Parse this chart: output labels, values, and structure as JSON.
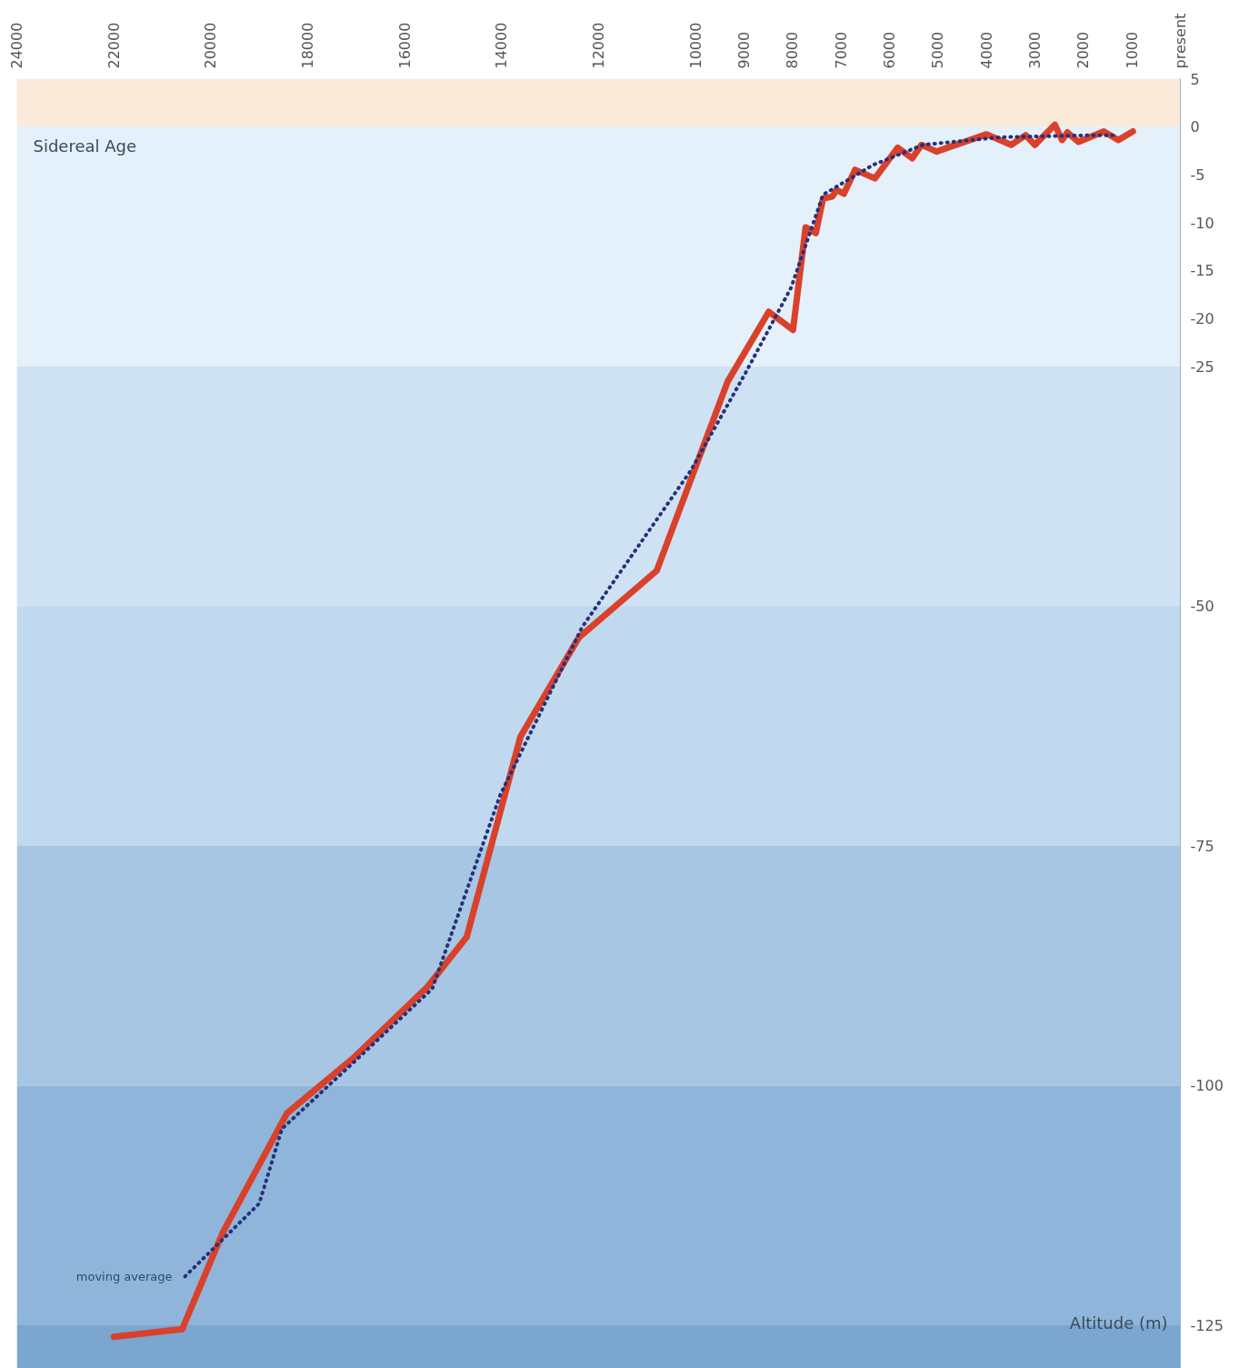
{
  "chart_data": {
    "type": "line",
    "xlabel": "Sidereal Age",
    "ylabel": "Altitude (m)",
    "xlim": [
      24000,
      0
    ],
    "ylim": [
      -129.5,
      5
    ],
    "xticks": [
      24000,
      22000,
      20000,
      18000,
      16000,
      14000,
      12000,
      10000,
      9000,
      8000,
      7000,
      6000,
      5000,
      4000,
      3000,
      2000,
      1000,
      {
        "value": 0,
        "label": "present"
      }
    ],
    "yticks": [
      5,
      0,
      -5,
      -10,
      -15,
      -20,
      -25,
      -50,
      -75,
      -100,
      -125
    ],
    "grid": false,
    "legend": false,
    "bands": [
      {
        "axis": "y",
        "from": 0,
        "to": 5,
        "color": "#fbe9da"
      },
      {
        "axis": "y",
        "from": -25,
        "to": 0,
        "color": "#e4f0fa"
      },
      {
        "axis": "y",
        "from": -50,
        "to": -25,
        "color": "#cfe2f3"
      },
      {
        "axis": "y",
        "from": -75,
        "to": -50,
        "color": "#c0d9ef"
      },
      {
        "axis": "y",
        "from": -100,
        "to": -75,
        "color": "#a6c6e3"
      },
      {
        "axis": "y",
        "from": -125,
        "to": -100,
        "color": "#8fb6da"
      },
      {
        "axis": "y",
        "from": -129.5,
        "to": -125,
        "color": "#7aa6cf"
      }
    ],
    "series": [
      {
        "color": "#d9412b",
        "line_style": "solid",
        "x": [
          22000,
          20590,
          19750,
          18430,
          17030,
          15530,
          14720,
          13610,
          12410,
          10800,
          9340,
          8490,
          7990,
          7730,
          7520,
          7370,
          7180,
          7090,
          6940,
          6710,
          6300,
          5830,
          5530,
          5340,
          5030,
          4000,
          3490,
          3190,
          3000,
          2590,
          2440,
          2330,
          2100,
          1580,
          1280,
          980
        ],
        "values": [
          -126.2,
          -125.4,
          -115.3,
          -102.9,
          -97,
          -89.7,
          -84.5,
          -63.6,
          -53.3,
          -46.3,
          -26.6,
          -19.3,
          -21.2,
          -10.5,
          -11.1,
          -7.5,
          -7.3,
          -6.6,
          -7,
          -4.5,
          -5.4,
          -2.2,
          -3.3,
          -1.9,
          -2.6,
          -0.8,
          -1.9,
          -0.9,
          -1.9,
          0.2,
          -1.4,
          -0.6,
          -1.6,
          -0.5,
          -1.4,
          -0.5
        ]
      },
      {
        "name": "moving average",
        "color": "#27307a",
        "line_style": "dotted",
        "x": [
          20530,
          19000,
          18530,
          17120,
          15430,
          14030,
          12340,
          10090,
          8960,
          8030,
          7370,
          6340,
          5310,
          3710,
          1840,
          1280
        ],
        "values": [
          -119.9,
          -112.3,
          -104.5,
          -97.9,
          -89.9,
          -69.7,
          -52.2,
          -35.8,
          -25.6,
          -16.8,
          -7.1,
          -4,
          -1.9,
          -1.1,
          -0.9,
          -0.9
        ]
      }
    ]
  }
}
